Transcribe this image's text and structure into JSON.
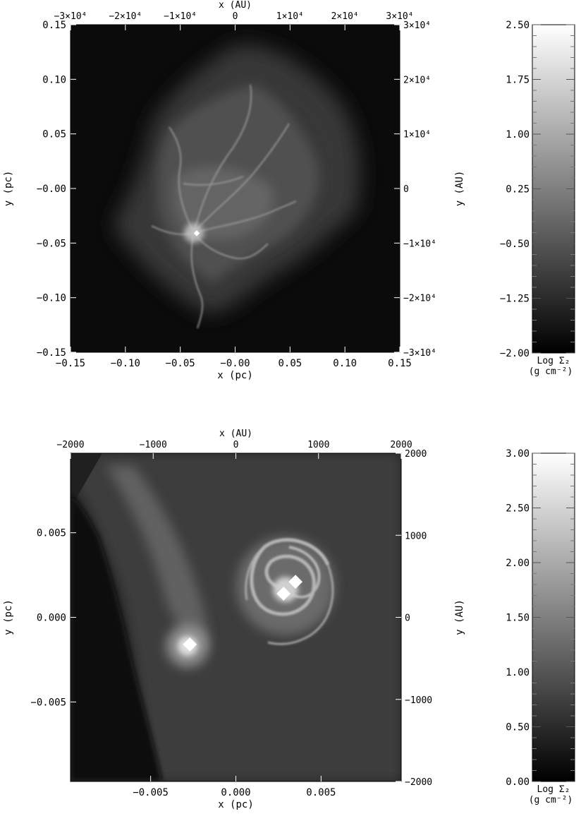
{
  "chart_data": [
    {
      "type": "heatmap",
      "xlabel_bottom": "x (pc)",
      "ylabel_left": "y (pc)",
      "xlabel_top": "x (AU)",
      "ylabel_right": "y (AU)",
      "xlim": [
        -0.15,
        0.15
      ],
      "ylim": [
        -0.15,
        0.15
      ],
      "xlim_au": [
        -30000,
        30000
      ],
      "x_ticks_pc": [
        {
          "v": -0.15,
          "label": "−0.15"
        },
        {
          "v": -0.1,
          "label": "−0.10"
        },
        {
          "v": -0.05,
          "label": "−0.05"
        },
        {
          "v": 0.0,
          "label": "−0.00"
        },
        {
          "v": 0.05,
          "label": "0.05"
        },
        {
          "v": 0.1,
          "label": "0.10"
        },
        {
          "v": 0.15,
          "label": "0.15"
        }
      ],
      "y_ticks_pc": [
        {
          "v": 0.15,
          "label": "0.15"
        },
        {
          "v": 0.1,
          "label": "0.10"
        },
        {
          "v": 0.05,
          "label": "0.05"
        },
        {
          "v": 0.0,
          "label": "−0.00"
        },
        {
          "v": -0.05,
          "label": "−0.05"
        },
        {
          "v": -0.1,
          "label": "−0.10"
        },
        {
          "v": -0.15,
          "label": "−0.15"
        }
      ],
      "x_ticks_au": [
        {
          "v": -30000,
          "label": "−3×10⁴"
        },
        {
          "v": -20000,
          "label": "−2×10⁴"
        },
        {
          "v": -10000,
          "label": "−1×10⁴"
        },
        {
          "v": 0,
          "label": "0"
        },
        {
          "v": 10000,
          "label": "1×10⁴"
        },
        {
          "v": 20000,
          "label": "2×10⁴"
        },
        {
          "v": 30000,
          "label": "3×10⁴"
        }
      ],
      "y_ticks_au": [
        {
          "v": 30000,
          "label": "3×10⁴"
        },
        {
          "v": 20000,
          "label": "2×10⁴"
        },
        {
          "v": 10000,
          "label": "1×10⁴"
        },
        {
          "v": 0,
          "label": "0"
        },
        {
          "v": -10000,
          "label": "−1×10⁴"
        },
        {
          "v": -20000,
          "label": "−2×10⁴"
        },
        {
          "v": -30000,
          "label": "−3×10⁴"
        }
      ],
      "colorbar": {
        "range": [
          -2.0,
          2.5
        ],
        "ticks": [
          {
            "v": 2.5,
            "label": "2.50"
          },
          {
            "v": 1.75,
            "label": "1.75"
          },
          {
            "v": 1.0,
            "label": "1.00"
          },
          {
            "v": 0.25,
            "label": "0.25"
          },
          {
            "v": -0.5,
            "label": "−0.50"
          },
          {
            "v": -1.25,
            "label": "−1.25"
          },
          {
            "v": -2.0,
            "label": "−2.00"
          }
        ],
        "label_line1": "Log Σ₂",
        "label_line2": "(g cm⁻²)"
      },
      "sinks": [
        {
          "x": -0.035,
          "y": -0.041
        }
      ]
    },
    {
      "type": "heatmap",
      "xlabel_bottom": "x (pc)",
      "ylabel_left": "y (pc)",
      "xlabel_top": "x (AU)",
      "ylabel_right": "y (AU)",
      "xlim": [
        -0.0097,
        0.0097
      ],
      "ylim": [
        -0.0097,
        0.0097
      ],
      "xlim_au": [
        -2000,
        2000
      ],
      "x_ticks_pc": [
        {
          "v": -0.005,
          "label": "−0.005"
        },
        {
          "v": 0.0,
          "label": "0.000"
        },
        {
          "v": 0.005,
          "label": "0.005"
        }
      ],
      "y_ticks_pc": [
        {
          "v": 0.005,
          "label": "0.005"
        },
        {
          "v": 0.0,
          "label": "0.000"
        },
        {
          "v": -0.005,
          "label": "−0.005"
        }
      ],
      "x_ticks_au": [
        {
          "v": -2000,
          "label": "−2000"
        },
        {
          "v": -1000,
          "label": "−1000"
        },
        {
          "v": 0,
          "label": "0"
        },
        {
          "v": 1000,
          "label": "1000"
        },
        {
          "v": 2000,
          "label": "2000"
        }
      ],
      "y_ticks_au": [
        {
          "v": 2000,
          "label": "2000"
        },
        {
          "v": 1000,
          "label": "1000"
        },
        {
          "v": 0,
          "label": "0"
        },
        {
          "v": -1000,
          "label": "−1000"
        },
        {
          "v": -2000,
          "label": "−2000"
        }
      ],
      "colorbar": {
        "range": [
          0.0,
          3.0
        ],
        "ticks": [
          {
            "v": 3.0,
            "label": "3.00"
          },
          {
            "v": 2.5,
            "label": "2.50"
          },
          {
            "v": 2.0,
            "label": "2.00"
          },
          {
            "v": 1.5,
            "label": "1.50"
          },
          {
            "v": 1.0,
            "label": "1.00"
          },
          {
            "v": 0.5,
            "label": "0.50"
          },
          {
            "v": 0.0,
            "label": "0.00"
          }
        ],
        "label_line1": "Log Σ₂",
        "label_line2": "(g cm⁻²)"
      },
      "sinks": [
        {
          "x": -0.0027,
          "y": -0.0016
        },
        {
          "x": 0.0028,
          "y": 0.0014
        },
        {
          "x": 0.0035,
          "y": 0.0021
        }
      ]
    }
  ]
}
